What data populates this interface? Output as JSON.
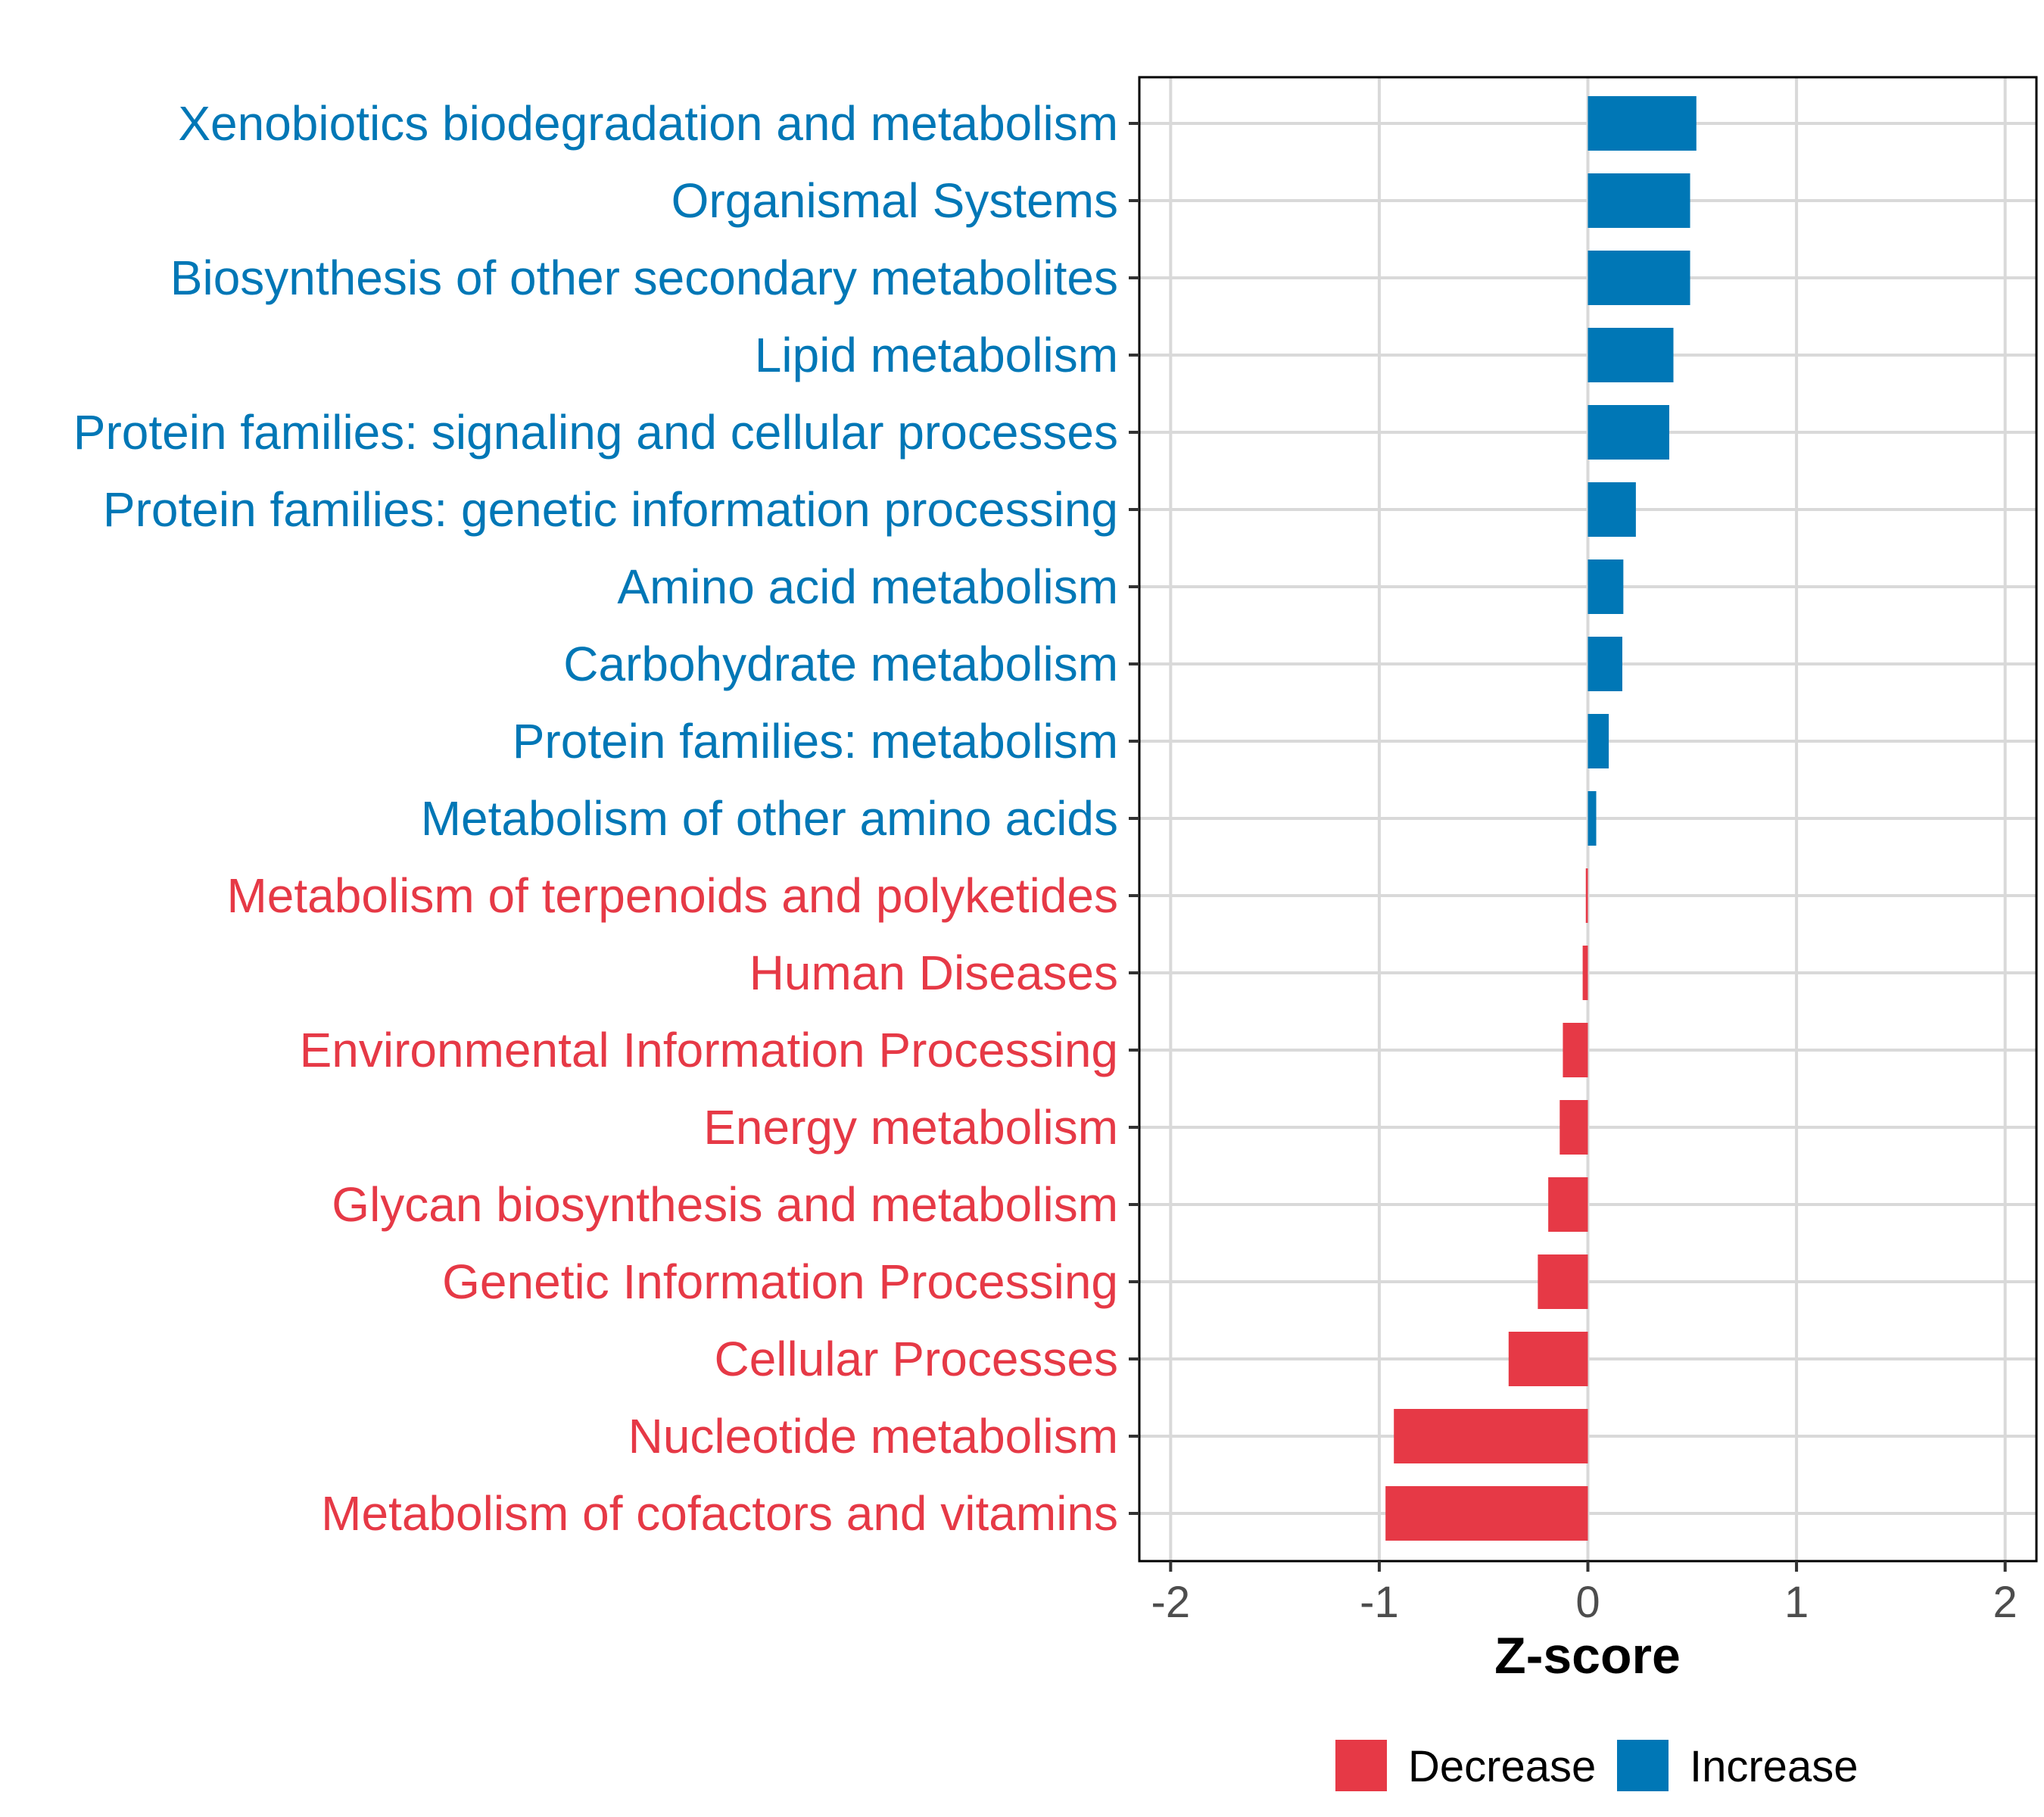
{
  "chart_data": {
    "type": "bar",
    "orientation": "horizontal",
    "title": "",
    "xlabel": "Z-score",
    "ylabel": "",
    "xlim": [
      -2.15,
      2.15
    ],
    "xticks": [
      -2,
      -1,
      0,
      1,
      2
    ],
    "xtick_labels": [
      "-2",
      "-1",
      "0",
      "1",
      "2"
    ],
    "grid": true,
    "legend_position": "bottom",
    "categories": [
      "Xenobiotics biodegradation and metabolism",
      "Organismal Systems",
      "Biosynthesis of other secondary metabolites",
      "Lipid metabolism",
      "Protein families: signaling and cellular processes",
      "Protein families: genetic information processing",
      "Amino acid metabolism",
      "Carbohydrate metabolism",
      "Protein families: metabolism",
      "Metabolism of other amino acids",
      "Metabolism of terpenoids and polyketides",
      "Human Diseases",
      "Environmental Information Processing",
      "Energy metabolism",
      "Glycan biosynthesis and metabolism",
      "Genetic Information Processing",
      "Cellular Processes",
      "Nucleotide metabolism",
      "Metabolism of cofactors and vitamins"
    ],
    "values": [
      0.52,
      0.49,
      0.49,
      0.41,
      0.39,
      0.23,
      0.17,
      0.165,
      0.1,
      0.04,
      -0.01,
      -0.025,
      -0.12,
      -0.135,
      -0.19,
      -0.24,
      -0.38,
      -0.93,
      -0.97
    ],
    "groups": [
      "Increase",
      "Increase",
      "Increase",
      "Increase",
      "Increase",
      "Increase",
      "Increase",
      "Increase",
      "Increase",
      "Increase",
      "Decrease",
      "Decrease",
      "Decrease",
      "Decrease",
      "Decrease",
      "Decrease",
      "Decrease",
      "Decrease",
      "Decrease"
    ],
    "legend": [
      {
        "name": "Decrease",
        "color": "#E63946"
      },
      {
        "name": "Increase",
        "color": "#0077B6"
      }
    ]
  }
}
